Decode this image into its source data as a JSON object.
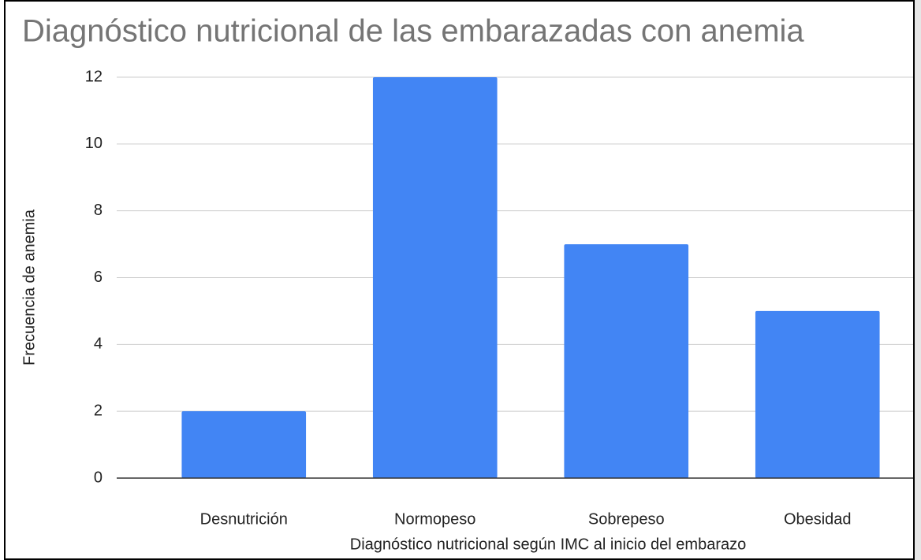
{
  "chart_data": {
    "type": "bar",
    "title": "Diagnóstico nutricional de las embarazadas con anemia",
    "x_label": "Diagnóstico nutricional según IMC al inicio del embarazo",
    "y_label": "Frecuencia de anemia",
    "categories": [
      "Desnutrición",
      "Normopeso",
      "Sobrepeso",
      "Obesidad"
    ],
    "values": [
      2,
      12,
      7,
      5
    ],
    "color": "#4285f4",
    "ylim": [
      0,
      12
    ],
    "yticks": [
      0,
      2,
      4,
      6,
      8,
      10,
      12
    ],
    "grid": true
  }
}
